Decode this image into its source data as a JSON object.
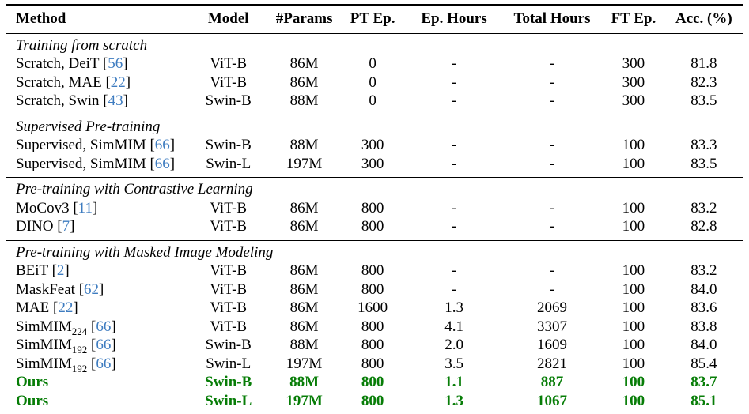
{
  "table": {
    "colors": {
      "citation_blue": "#3e7cc0",
      "highlight_green": "#077d07",
      "text_black": "#000000"
    },
    "columns": [
      {
        "key": "method",
        "label": "Method",
        "align": "left"
      },
      {
        "key": "model",
        "label": "Model",
        "align": "center"
      },
      {
        "key": "params",
        "label": "#Params",
        "align": "center"
      },
      {
        "key": "pt-ep",
        "label": "PT Ep.",
        "align": "center"
      },
      {
        "key": "ep-hours",
        "label": "Ep. Hours",
        "align": "center"
      },
      {
        "key": "total-hours",
        "label": "Total Hours",
        "align": "center"
      },
      {
        "key": "ft-ep",
        "label": "FT Ep.",
        "align": "center"
      },
      {
        "key": "acc",
        "label": "Acc. (%)",
        "align": "center"
      }
    ],
    "sections": [
      {
        "heading": "Training from scratch",
        "rows": [
          {
            "method": "Scratch, DeiT",
            "sub": "",
            "citation": "56",
            "values": [
              "ViT-B",
              "86M",
              "0",
              "-",
              "-",
              "300",
              "81.8"
            ],
            "highlight": false
          },
          {
            "method": "Scratch, MAE",
            "sub": "",
            "citation": "22",
            "values": [
              "ViT-B",
              "86M",
              "0",
              "-",
              "-",
              "300",
              "82.3"
            ],
            "highlight": false
          },
          {
            "method": "Scratch, Swin",
            "sub": "",
            "citation": "43",
            "values": [
              "Swin-B",
              "88M",
              "0",
              "-",
              "-",
              "300",
              "83.5"
            ],
            "highlight": false
          }
        ]
      },
      {
        "heading": "Supervised Pre-training",
        "rows": [
          {
            "method": "Supervised, SimMIM",
            "sub": "",
            "citation": "66",
            "values": [
              "Swin-B",
              "88M",
              "300",
              "-",
              "-",
              "100",
              "83.3"
            ],
            "highlight": false
          },
          {
            "method": "Supervised, SimMIM",
            "sub": "",
            "citation": "66",
            "values": [
              "Swin-L",
              "197M",
              "300",
              "-",
              "-",
              "100",
              "83.5"
            ],
            "highlight": false
          }
        ]
      },
      {
        "heading": "Pre-training with Contrastive Learning",
        "rows": [
          {
            "method": "MoCov3",
            "sub": "",
            "citation": "11",
            "values": [
              "ViT-B",
              "86M",
              "800",
              "-",
              "-",
              "100",
              "83.2"
            ],
            "highlight": false
          },
          {
            "method": "DINO",
            "sub": "",
            "citation": "7",
            "values": [
              "ViT-B",
              "86M",
              "800",
              "-",
              "-",
              "100",
              "82.8"
            ],
            "highlight": false
          }
        ]
      },
      {
        "heading": "Pre-training with Masked Image Modeling",
        "rows": [
          {
            "method": "BEiT",
            "sub": "",
            "citation": "2",
            "values": [
              "ViT-B",
              "86M",
              "800",
              "-",
              "-",
              "100",
              "83.2"
            ],
            "highlight": false
          },
          {
            "method": "MaskFeat",
            "sub": "",
            "citation": "62",
            "values": [
              "ViT-B",
              "86M",
              "800",
              "-",
              "-",
              "100",
              "84.0"
            ],
            "highlight": false
          },
          {
            "method": "MAE",
            "sub": "",
            "citation": "22",
            "values": [
              "ViT-B",
              "86M",
              "1600",
              "1.3",
              "2069",
              "100",
              "83.6"
            ],
            "highlight": false
          },
          {
            "method": "SimMIM",
            "sub": "224",
            "citation": "66",
            "values": [
              "ViT-B",
              "86M",
              "800",
              "4.1",
              "3307",
              "100",
              "83.8"
            ],
            "highlight": false
          },
          {
            "method": "SimMIM",
            "sub": "192",
            "citation": "66",
            "values": [
              "Swin-B",
              "88M",
              "800",
              "2.0",
              "1609",
              "100",
              "84.0"
            ],
            "highlight": false
          },
          {
            "method": "SimMIM",
            "sub": "192",
            "citation": "66",
            "values": [
              "Swin-L",
              "197M",
              "800",
              "3.5",
              "2821",
              "100",
              "85.4"
            ],
            "highlight": false
          },
          {
            "method": "Ours",
            "sub": "",
            "citation": "",
            "values": [
              "Swin-B",
              "88M",
              "800",
              "1.1",
              "887",
              "100",
              "83.7"
            ],
            "highlight": true
          },
          {
            "method": "Ours",
            "sub": "",
            "citation": "",
            "values": [
              "Swin-L",
              "197M",
              "800",
              "1.3",
              "1067",
              "100",
              "85.1"
            ],
            "highlight": true
          }
        ]
      }
    ]
  }
}
